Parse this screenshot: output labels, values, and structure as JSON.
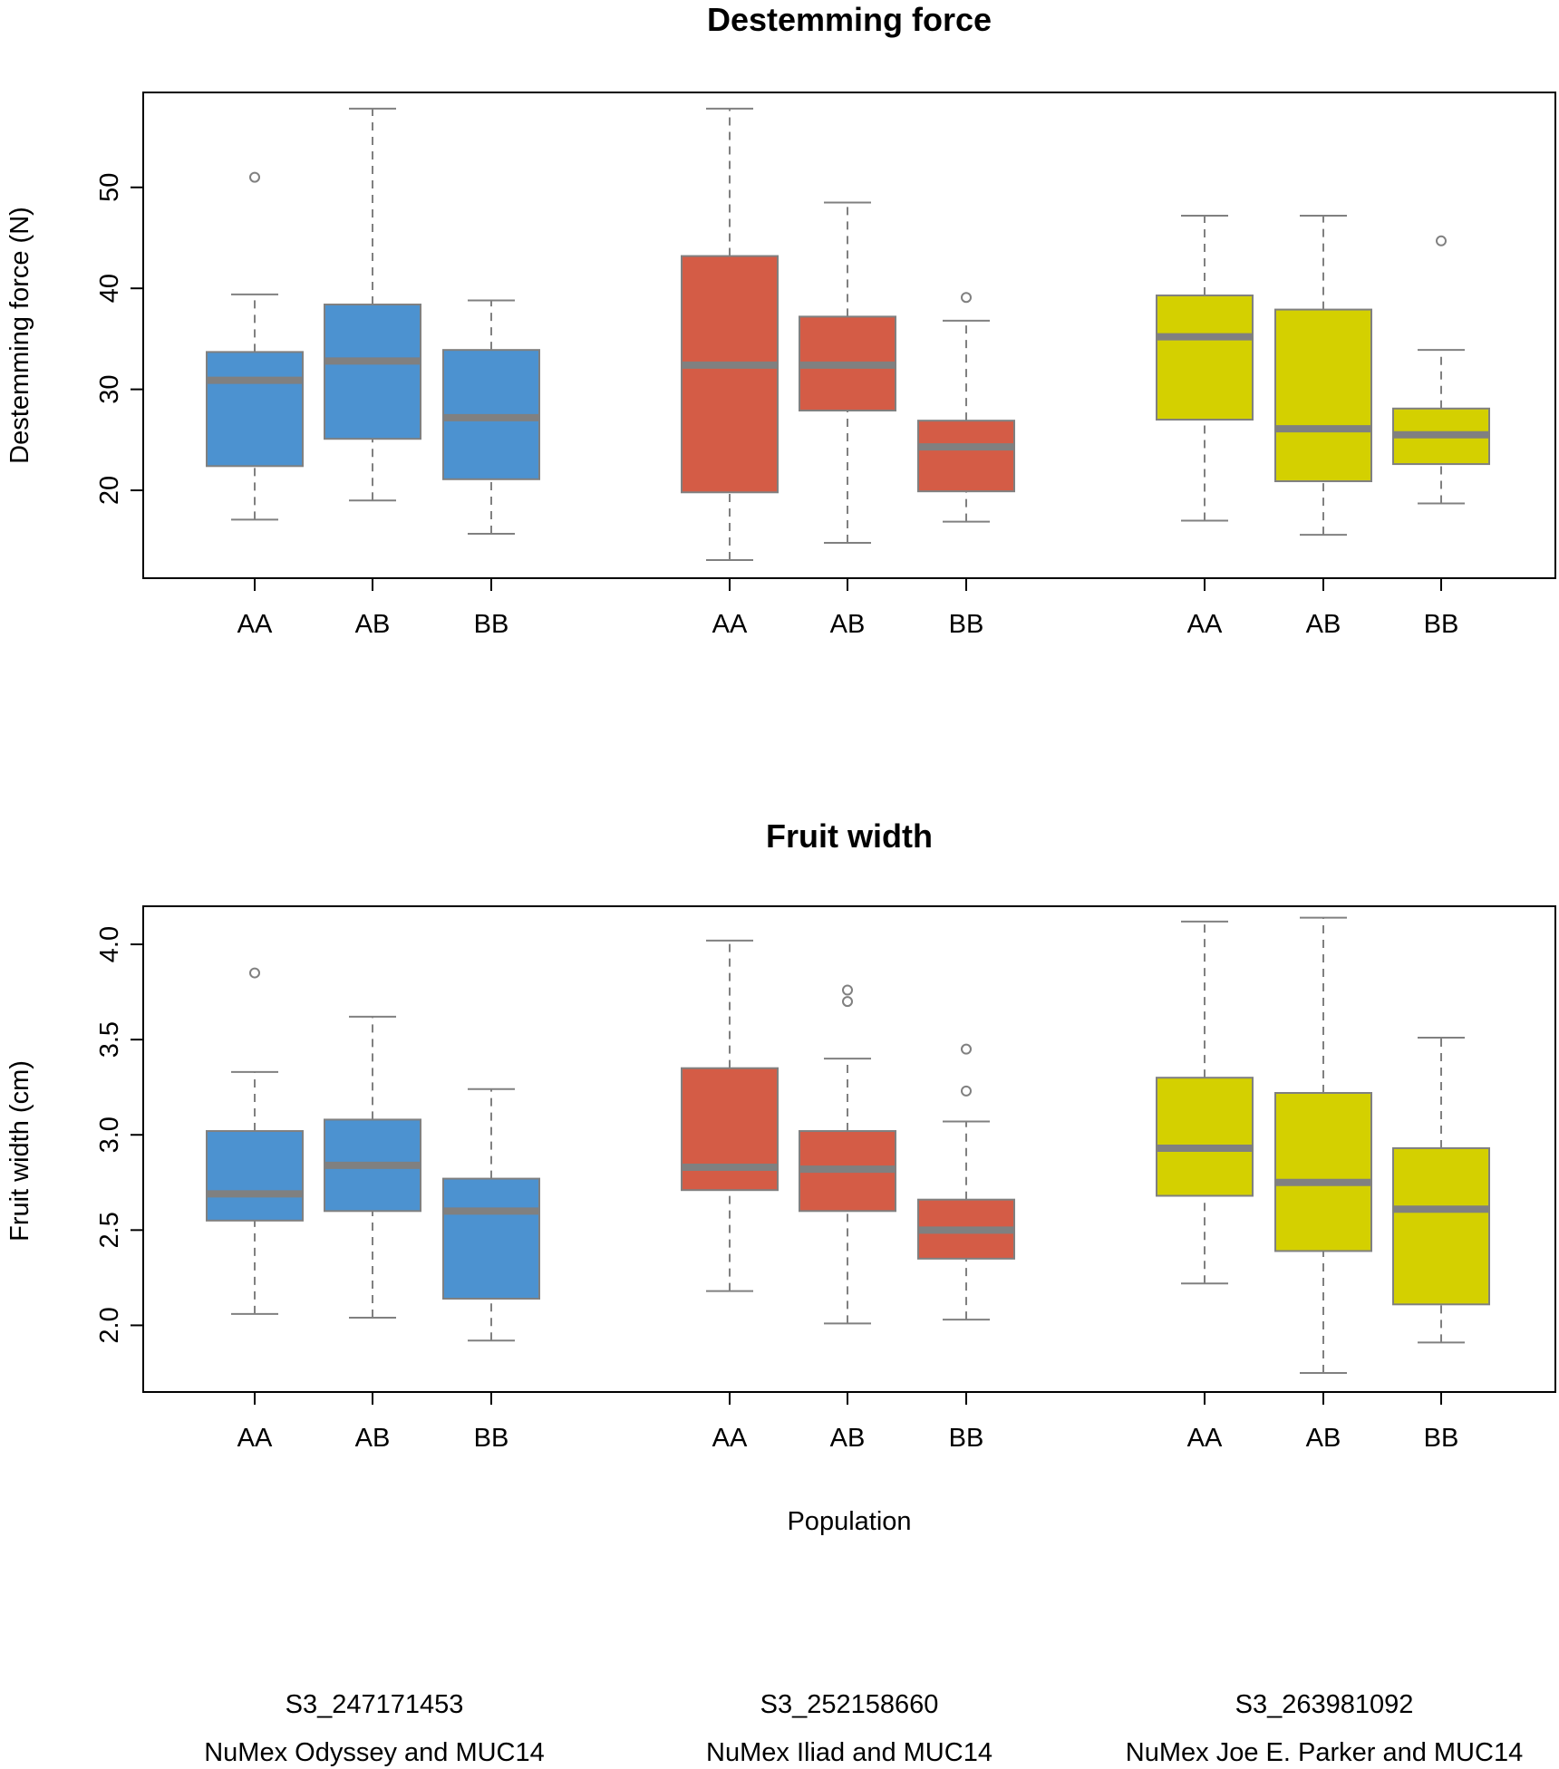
{
  "chart_data": [
    {
      "type": "box",
      "title": "Destemming force",
      "ylabel": "Destemming force (N)",
      "xlabel": "",
      "ylim": [
        11.3,
        59.4
      ],
      "yticks": [
        20,
        30,
        40,
        50
      ],
      "categories": [
        "AA",
        "AB",
        "BB"
      ],
      "series": [
        {
          "name": "NuMex Odyssey and MUC14",
          "color": "#4c92d0",
          "boxes": [
            {
              "label": "AA",
              "whisker_low": 17.1,
              "q1": 22.4,
              "median": 30.9,
              "q3": 33.7,
              "whisker_high": 39.4,
              "outliers": [
                51.0
              ]
            },
            {
              "label": "AB",
              "whisker_low": 19.0,
              "q1": 25.1,
              "median": 32.8,
              "q3": 38.4,
              "whisker_high": 57.8,
              "outliers": []
            },
            {
              "label": "BB",
              "whisker_low": 15.7,
              "q1": 21.1,
              "median": 27.2,
              "q3": 33.9,
              "whisker_high": 38.8,
              "outliers": []
            }
          ]
        },
        {
          "name": "NuMex Iliad and MUC14",
          "color": "#d45c46",
          "boxes": [
            {
              "label": "AA",
              "whisker_low": 13.1,
              "q1": 19.8,
              "median": 32.4,
              "q3": 43.2,
              "whisker_high": 57.8,
              "outliers": []
            },
            {
              "label": "AB",
              "whisker_low": 14.8,
              "q1": 27.9,
              "median": 32.4,
              "q3": 37.2,
              "whisker_high": 48.5,
              "outliers": []
            },
            {
              "label": "BB",
              "whisker_low": 16.9,
              "q1": 19.9,
              "median": 24.3,
              "q3": 26.9,
              "whisker_high": 36.8,
              "outliers": [
                39.1
              ]
            }
          ]
        },
        {
          "name": "NuMex Joe E. Parker and MUC14",
          "color": "#d4d000",
          "boxes": [
            {
              "label": "AA",
              "whisker_low": 17.0,
              "q1": 27.0,
              "median": 35.2,
              "q3": 39.3,
              "whisker_high": 47.2,
              "outliers": []
            },
            {
              "label": "AB",
              "whisker_low": 15.6,
              "q1": 20.9,
              "median": 26.1,
              "q3": 37.9,
              "whisker_high": 47.2,
              "outliers": []
            },
            {
              "label": "BB",
              "whisker_low": 18.7,
              "q1": 22.6,
              "median": 25.5,
              "q3": 28.1,
              "whisker_high": 33.9,
              "outliers": [
                44.7
              ]
            }
          ]
        }
      ]
    },
    {
      "type": "box",
      "title": "Fruit width",
      "ylabel": "Fruit width (cm)",
      "xlabel": "Population",
      "ylim": [
        1.65,
        4.2
      ],
      "yticks": [
        "2.0",
        "2.5",
        "3.0",
        "3.5",
        "4.0"
      ],
      "categories": [
        "AA",
        "AB",
        "BB"
      ],
      "series": [
        {
          "name": "NuMex Odyssey and MUC14",
          "color": "#4c92d0",
          "boxes": [
            {
              "label": "AA",
              "whisker_low": 2.06,
              "q1": 2.55,
              "median": 2.69,
              "q3": 3.02,
              "whisker_high": 3.33,
              "outliers": [
                3.85
              ]
            },
            {
              "label": "AB",
              "whisker_low": 2.04,
              "q1": 2.6,
              "median": 2.84,
              "q3": 3.08,
              "whisker_high": 3.62,
              "outliers": []
            },
            {
              "label": "BB",
              "whisker_low": 1.92,
              "q1": 2.14,
              "median": 2.6,
              "q3": 2.77,
              "whisker_high": 3.24,
              "outliers": []
            }
          ]
        },
        {
          "name": "NuMex Iliad and MUC14",
          "color": "#d45c46",
          "boxes": [
            {
              "label": "AA",
              "whisker_low": 2.18,
              "q1": 2.71,
              "median": 2.83,
              "q3": 3.35,
              "whisker_high": 4.02,
              "outliers": []
            },
            {
              "label": "AB",
              "whisker_low": 2.01,
              "q1": 2.6,
              "median": 2.82,
              "q3": 3.02,
              "whisker_high": 3.4,
              "outliers": [
                3.7,
                3.76
              ]
            },
            {
              "label": "BB",
              "whisker_low": 2.03,
              "q1": 2.35,
              "median": 2.5,
              "q3": 2.66,
              "whisker_high": 3.07,
              "outliers": [
                3.23,
                3.45
              ]
            }
          ]
        },
        {
          "name": "NuMex Joe E. Parker and MUC14",
          "color": "#d4d000",
          "boxes": [
            {
              "label": "AA",
              "whisker_low": 2.22,
              "q1": 2.68,
              "median": 2.93,
              "q3": 3.3,
              "whisker_high": 4.12,
              "outliers": []
            },
            {
              "label": "AB",
              "whisker_low": 1.75,
              "q1": 2.39,
              "median": 2.75,
              "q3": 3.22,
              "whisker_high": 4.14,
              "outliers": []
            },
            {
              "label": "BB",
              "whisker_low": 1.91,
              "q1": 2.11,
              "median": 2.61,
              "q3": 2.93,
              "whisker_high": 3.51,
              "outliers": []
            }
          ]
        }
      ]
    }
  ],
  "populations": [
    {
      "marker": "S3_247171453",
      "cross": "NuMex Odyssey and MUC14"
    },
    {
      "marker": "S3_252158660",
      "cross": "NuMex Iliad and MUC14"
    },
    {
      "marker": "S3_263981092",
      "cross": "NuMex Joe E. Parker and MUC14"
    }
  ]
}
